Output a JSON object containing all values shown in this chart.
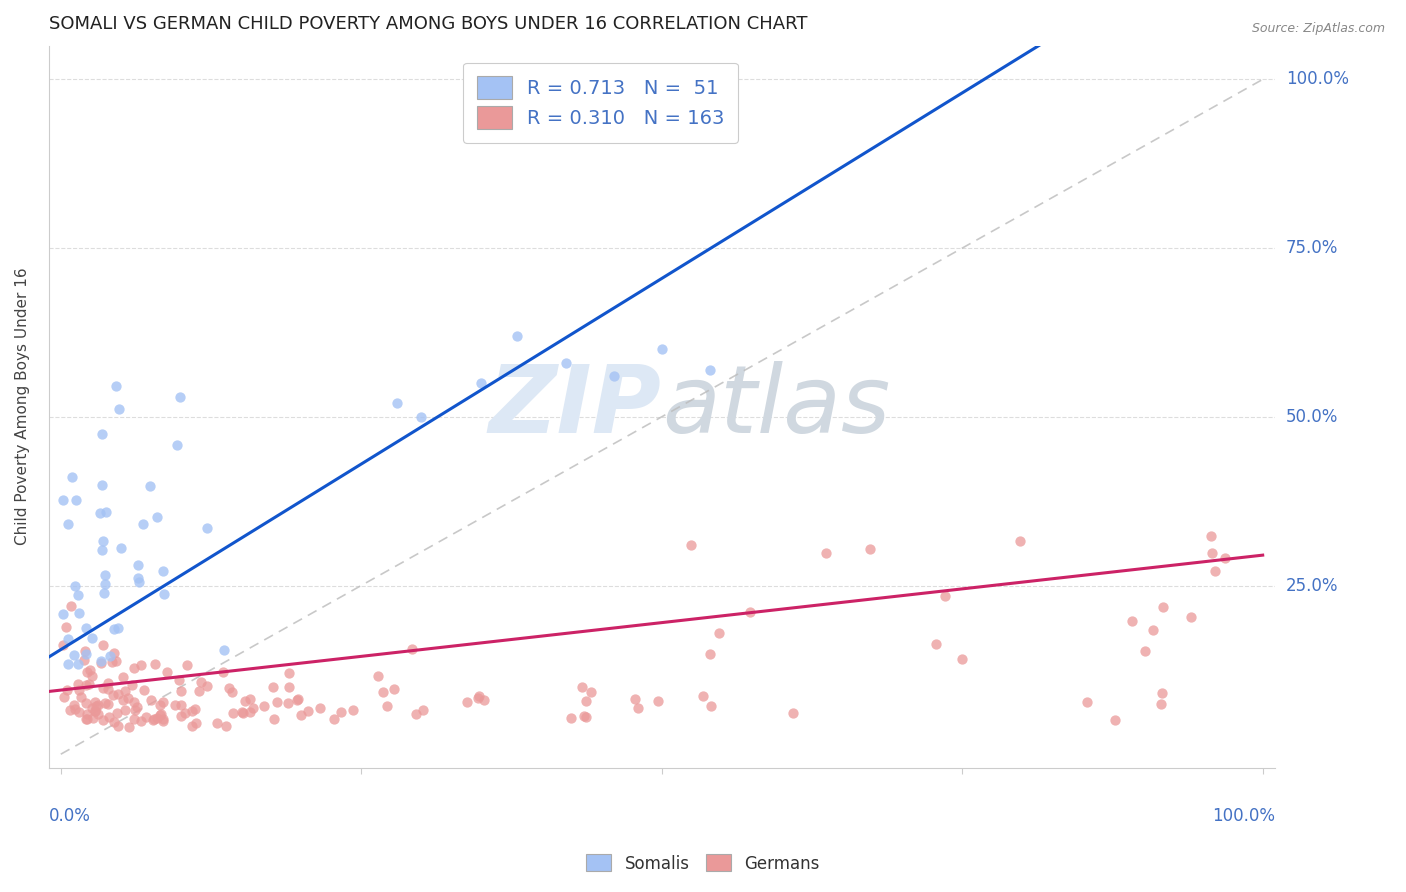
{
  "title": "SOMALI VS GERMAN CHILD POVERTY AMONG BOYS UNDER 16 CORRELATION CHART",
  "source": "Source: ZipAtlas.com",
  "ylabel": "Child Poverty Among Boys Under 16",
  "ytick_labels": [
    "25.0%",
    "50.0%",
    "75.0%",
    "100.0%"
  ],
  "ytick_vals": [
    0.25,
    0.5,
    0.75,
    1.0
  ],
  "xtick_left": "0.0%",
  "xtick_right": "100.0%",
  "legend_bottom": [
    "Somalis",
    "Germans"
  ],
  "somali_R": 0.713,
  "somali_N": 51,
  "german_R": 0.31,
  "german_N": 163,
  "somali_color": "#a4c2f4",
  "german_color": "#ea9999",
  "somali_line_color": "#1155cc",
  "german_line_color": "#cc2266",
  "ref_line_color": "#bbbbbb",
  "watermark_color": "#dde8f5",
  "background_color": "#ffffff",
  "title_fontsize": 13,
  "axis_label_fontsize": 11,
  "tick_fontsize": 12,
  "legend_fontsize": 14,
  "somali_line_intercept": 0.155,
  "somali_line_slope": 1.1,
  "german_line_intercept": 0.095,
  "german_line_slope": 0.2
}
